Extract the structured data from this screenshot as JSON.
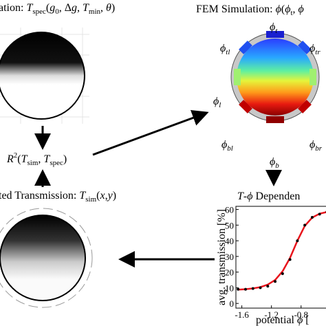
{
  "panels": {
    "spec_title": [
      "ation: ",
      "T",
      "spec",
      "(",
      "g",
      "0",
      ", Δ",
      "g",
      ", ",
      "T",
      "min",
      ", ",
      "θ",
      ")"
    ],
    "fem_title": [
      "FEM Simulation: ",
      "ϕ",
      "(",
      "ϕ",
      "t",
      ", ",
      "ϕ"
    ],
    "r2": [
      "R",
      "2",
      "(",
      "T",
      "sim",
      ", ",
      "T",
      "spec",
      ")"
    ],
    "sim_title": [
      "ted Transmission: ",
      "T",
      "sim",
      "(",
      "x",
      ",",
      "y",
      ")"
    ],
    "dep_title": [
      "T",
      "-",
      "ϕ",
      " Dependen"
    ],
    "electrodes": [
      [
        "ϕ",
        "t"
      ],
      [
        "ϕ",
        "tl"
      ],
      [
        "ϕ",
        "tr"
      ],
      [
        "ϕ",
        "l"
      ],
      [
        "ϕ",
        "bl"
      ],
      [
        "ϕ",
        "br"
      ],
      [
        "ϕ",
        "b"
      ]
    ]
  },
  "chart_data": {
    "type": "line",
    "x_label": [
      "potential ",
      "ϕ",
      " ["
    ],
    "y_label": "avg. transmission [%]",
    "x": [
      -1.65,
      -1.55,
      -1.45,
      -1.35,
      -1.25,
      -1.15,
      -1.05,
      -0.95,
      -0.85,
      -0.75,
      -0.65,
      -0.55,
      -0.45
    ],
    "series": [
      {
        "style": "points",
        "color": "#000000",
        "values": [
          9,
          9,
          9.5,
          10,
          11,
          14,
          19,
          28,
          40,
          50,
          55,
          57,
          58.5
        ]
      },
      {
        "style": "line",
        "color": "#e8141c",
        "values": [
          8.8,
          9.1,
          9.6,
          10.4,
          12,
          15,
          20.5,
          29,
          40,
          49.5,
          54.8,
          57.3,
          58.4
        ]
      }
    ],
    "xlim": [
      -1.68,
      -0.38
    ],
    "ylim": [
      -3,
      62
    ],
    "xticks": [
      -1.6,
      -1.2,
      -0.8,
      {
        "value": -0.4,
        "label": "-0."
      }
    ],
    "yticks": [
      0,
      10,
      20,
      30,
      40,
      50,
      60
    ]
  }
}
